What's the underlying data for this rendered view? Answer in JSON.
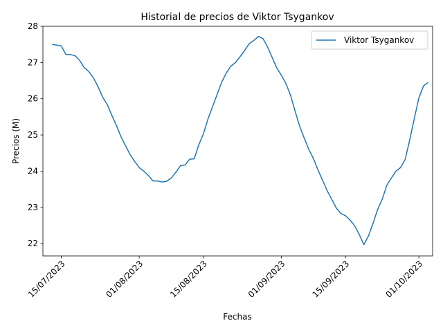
{
  "chart_data": {
    "type": "line",
    "title": "Historial de precios de Viktor Tsygankov",
    "xlabel": "Fechas",
    "ylabel": "Precios (M)",
    "x_range": [
      "2023-07-11",
      "2023-10-04"
    ],
    "ylim": [
      21.66,
      28.0
    ],
    "y_ticks": [
      22,
      23,
      24,
      25,
      26,
      27,
      28
    ],
    "x_ticks": [
      {
        "date": "2023-07-15",
        "label": "15/07/2023"
      },
      {
        "date": "2023-08-01",
        "label": "01/08/2023"
      },
      {
        "date": "2023-08-15",
        "label": "15/08/2023"
      },
      {
        "date": "2023-09-01",
        "label": "01/09/2023"
      },
      {
        "date": "2023-09-15",
        "label": "15/09/2023"
      },
      {
        "date": "2023-10-01",
        "label": "01/10/2023"
      }
    ],
    "x_tick_rotation": 45,
    "grid": false,
    "legend_position": "top-right",
    "series": [
      {
        "name": "Viktor Tsygankov",
        "color": "#1f77b4",
        "x": [
          "2023-07-13",
          "2023-07-14",
          "2023-07-15",
          "2023-07-16",
          "2023-07-17",
          "2023-07-18",
          "2023-07-19",
          "2023-07-20",
          "2023-07-21",
          "2023-07-22",
          "2023-07-23",
          "2023-07-24",
          "2023-07-25",
          "2023-07-26",
          "2023-07-27",
          "2023-07-28",
          "2023-07-29",
          "2023-07-30",
          "2023-07-31",
          "2023-08-01",
          "2023-08-02",
          "2023-08-03",
          "2023-08-04",
          "2023-08-05",
          "2023-08-06",
          "2023-08-07",
          "2023-08-08",
          "2023-08-09",
          "2023-08-10",
          "2023-08-11",
          "2023-08-12",
          "2023-08-13",
          "2023-08-14",
          "2023-08-15",
          "2023-08-16",
          "2023-08-17",
          "2023-08-18",
          "2023-08-19",
          "2023-08-20",
          "2023-08-21",
          "2023-08-22",
          "2023-08-23",
          "2023-08-24",
          "2023-08-25",
          "2023-08-26",
          "2023-08-27",
          "2023-08-28",
          "2023-08-29",
          "2023-08-30",
          "2023-08-31",
          "2023-09-01",
          "2023-09-02",
          "2023-09-03",
          "2023-09-04",
          "2023-09-05",
          "2023-09-06",
          "2023-09-07",
          "2023-09-08",
          "2023-09-09",
          "2023-09-10",
          "2023-09-11",
          "2023-09-12",
          "2023-09-13",
          "2023-09-14",
          "2023-09-15",
          "2023-09-16",
          "2023-09-17",
          "2023-09-18",
          "2023-09-19",
          "2023-09-20",
          "2023-09-21",
          "2023-09-22",
          "2023-09-23",
          "2023-09-24",
          "2023-09-25",
          "2023-09-26",
          "2023-09-27",
          "2023-09-28",
          "2023-09-29",
          "2023-09-30",
          "2023-10-01",
          "2023-10-02",
          "2023-10-03"
        ],
        "values": [
          27.5,
          27.48,
          27.46,
          27.22,
          27.22,
          27.19,
          27.06,
          26.86,
          26.75,
          26.58,
          26.34,
          26.05,
          25.85,
          25.55,
          25.27,
          24.96,
          24.71,
          24.46,
          24.27,
          24.1,
          24.0,
          23.88,
          23.73,
          23.73,
          23.7,
          23.72,
          23.81,
          23.97,
          24.15,
          24.17,
          24.33,
          24.34,
          24.73,
          25.03,
          25.44,
          25.78,
          26.12,
          26.46,
          26.71,
          26.9,
          27.0,
          27.16,
          27.33,
          27.52,
          27.61,
          27.72,
          27.66,
          27.43,
          27.14,
          26.85,
          26.65,
          26.42,
          26.1,
          25.66,
          25.24,
          24.91,
          24.6,
          24.35,
          24.03,
          23.75,
          23.46,
          23.22,
          22.98,
          22.83,
          22.77,
          22.65,
          22.49,
          22.25,
          21.97,
          22.21,
          22.56,
          22.94,
          23.22,
          23.61,
          23.81,
          24.0,
          24.1,
          24.32,
          24.86,
          25.45,
          26.02,
          26.35,
          26.45
        ]
      }
    ]
  }
}
